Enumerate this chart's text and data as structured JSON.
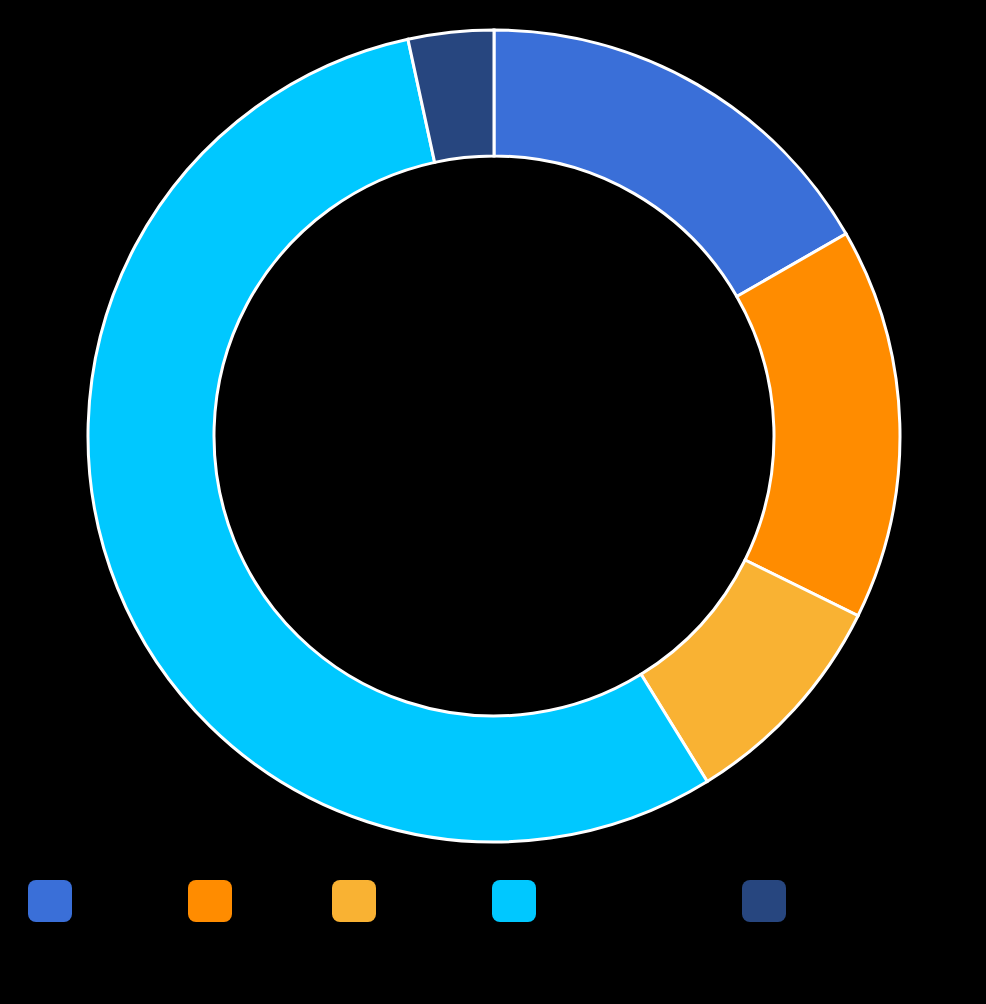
{
  "chart_data": {
    "type": "donut",
    "categories": [
      null,
      null,
      null,
      null,
      null
    ],
    "values": [
      16.7,
      15.6,
      8.9,
      55.4,
      3.4
    ],
    "colors": [
      "#3a6fd8",
      "#ff8c00",
      "#f9b233",
      "#00c8ff",
      "#27467f"
    ]
  }
}
